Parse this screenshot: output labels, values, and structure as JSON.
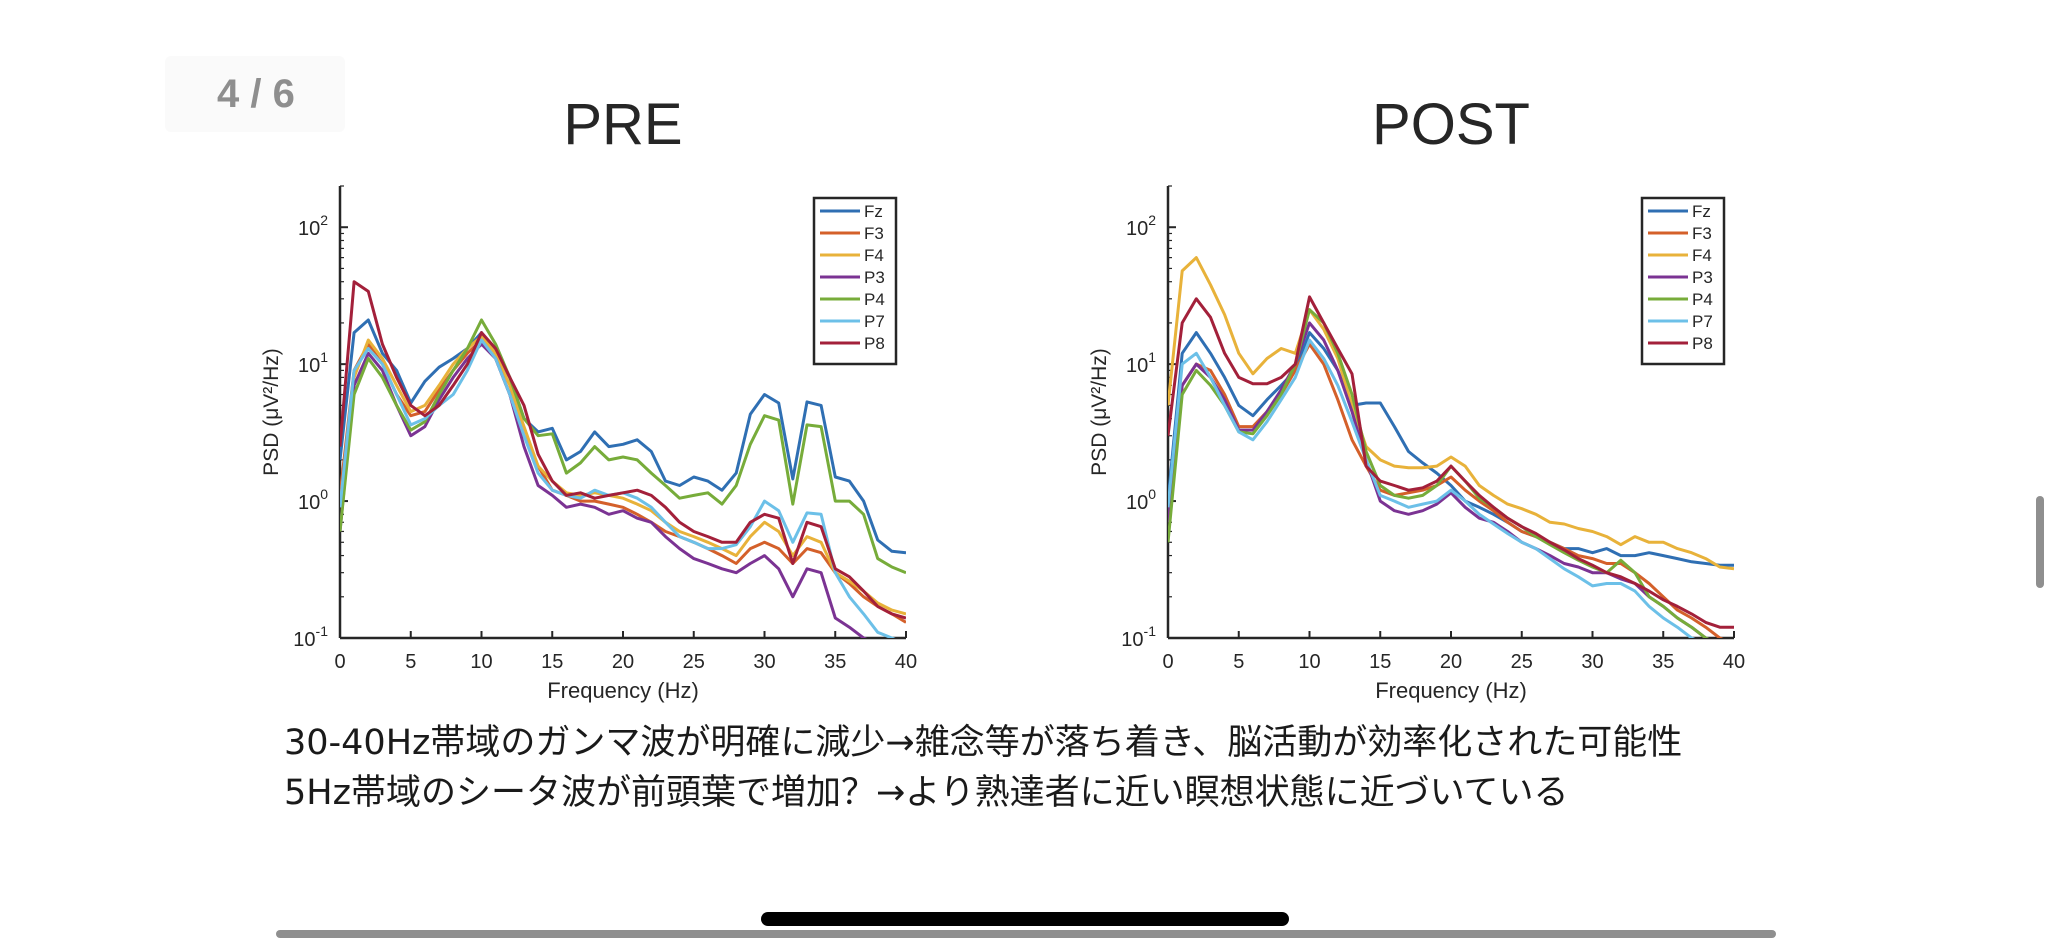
{
  "page_indicator": "4 / 6",
  "caption": {
    "line1": "30-40Hz帯域のガンマ波が明確に減少→雑念等が落ち着き、脳活動が効率化された可能性",
    "line2": "5Hz帯域のシータ波が前頭葉で増加？→より熟達者に近い瞑想状態に近づいている"
  },
  "colors": {
    "Fz": "#2f6fb3",
    "F3": "#d4602a",
    "F4": "#e8b23a",
    "P3": "#7b3393",
    "P4": "#77ac3a",
    "P7": "#6cc0e8",
    "P8": "#a3203a"
  },
  "chart_data": [
    {
      "type": "line",
      "title": "PRE",
      "xlabel": "Frequency (Hz)",
      "ylabel": "PSD (μV²/Hz)",
      "xlim": [
        0,
        40
      ],
      "ylim": [
        0.1,
        200
      ],
      "yscale": "log",
      "grid": false,
      "legend": "top-right",
      "x_ticks": [
        "0",
        "5",
        "10",
        "15",
        "20",
        "25",
        "30",
        "35",
        "40"
      ],
      "x": [
        0,
        1,
        2,
        3,
        4,
        5,
        6,
        7,
        8,
        9,
        10,
        11,
        12,
        13,
        14,
        15,
        16,
        17,
        18,
        19,
        20,
        21,
        22,
        23,
        24,
        25,
        26,
        27,
        28,
        29,
        30,
        31,
        32,
        33,
        34,
        35,
        36,
        37,
        38,
        39,
        40
      ],
      "series": [
        {
          "name": "Fz",
          "values": [
            2.0,
            17,
            21,
            12,
            9,
            5.2,
            7.5,
            9.5,
            11,
            13,
            17,
            12,
            8,
            4,
            3.2,
            3.4,
            2,
            2.3,
            3.2,
            2.5,
            2.6,
            2.8,
            2.3,
            1.4,
            1.3,
            1.5,
            1.4,
            1.2,
            1.6,
            4.3,
            6,
            5.2,
            1.45,
            5.3,
            5,
            1.5,
            1.4,
            1,
            0.52,
            0.43,
            0.42
          ]
        },
        {
          "name": "F3",
          "values": [
            1.1,
            9,
            14,
            10,
            6,
            4.2,
            4.5,
            6.5,
            9,
            12,
            15,
            11,
            6,
            3,
            1.8,
            1.2,
            1.1,
            1.0,
            1.0,
            0.95,
            0.9,
            0.8,
            0.7,
            0.6,
            0.55,
            0.5,
            0.45,
            0.4,
            0.35,
            0.45,
            0.5,
            0.45,
            0.35,
            0.45,
            0.42,
            0.3,
            0.25,
            0.2,
            0.17,
            0.15,
            0.13
          ]
        },
        {
          "name": "F4",
          "values": [
            0.9,
            8,
            15,
            11,
            7,
            4.5,
            5,
            7,
            10,
            13,
            16,
            12,
            7,
            3.5,
            1.8,
            1.4,
            1.15,
            1.1,
            1.15,
            1.1,
            1.05,
            0.95,
            0.85,
            0.7,
            0.6,
            0.55,
            0.5,
            0.45,
            0.4,
            0.55,
            0.7,
            0.6,
            0.4,
            0.55,
            0.5,
            0.3,
            0.26,
            0.22,
            0.18,
            0.16,
            0.15
          ]
        },
        {
          "name": "P3",
          "values": [
            0.6,
            7,
            12,
            9,
            5,
            3,
            3.5,
            5.5,
            8,
            11,
            14,
            11,
            6,
            2.5,
            1.3,
            1.1,
            0.9,
            0.95,
            0.9,
            0.8,
            0.85,
            0.75,
            0.7,
            0.55,
            0.45,
            0.38,
            0.35,
            0.32,
            0.3,
            0.35,
            0.4,
            0.32,
            0.2,
            0.32,
            0.3,
            0.14,
            0.12,
            0.1,
            0.09,
            0.08,
            0.08
          ]
        },
        {
          "name": "P4",
          "values": [
            0.6,
            6,
            11,
            8,
            5,
            3.3,
            3.8,
            6,
            9,
            13,
            21,
            14,
            8,
            4,
            3,
            3.1,
            1.6,
            1.9,
            2.5,
            2.0,
            2.1,
            2.0,
            1.6,
            1.3,
            1.05,
            1.1,
            1.15,
            0.95,
            1.3,
            2.6,
            4.2,
            3.9,
            0.95,
            3.6,
            3.5,
            1.0,
            1.0,
            0.8,
            0.38,
            0.33,
            0.3
          ]
        },
        {
          "name": "P7",
          "values": [
            0.9,
            9,
            13,
            10,
            6,
            3.6,
            4,
            5,
            6,
            9,
            15,
            11,
            6,
            3,
            1.6,
            1.2,
            1.1,
            1.05,
            1.2,
            1.1,
            1.15,
            1.05,
            0.9,
            0.7,
            0.55,
            0.5,
            0.45,
            0.45,
            0.48,
            0.65,
            1.0,
            0.85,
            0.5,
            0.82,
            0.8,
            0.3,
            0.2,
            0.15,
            0.11,
            0.1,
            0.09
          ]
        },
        {
          "name": "P8",
          "values": [
            2.5,
            40,
            34,
            14,
            8,
            5,
            4.2,
            5,
            7,
            10,
            17,
            13,
            8,
            5,
            2.2,
            1.4,
            1.1,
            1.15,
            1.05,
            1.1,
            1.15,
            1.2,
            1.1,
            0.9,
            0.7,
            0.6,
            0.55,
            0.5,
            0.5,
            0.7,
            0.8,
            0.75,
            0.35,
            0.7,
            0.65,
            0.32,
            0.28,
            0.22,
            0.17,
            0.15,
            0.14
          ]
        }
      ]
    },
    {
      "type": "line",
      "title": "POST",
      "xlabel": "Frequency (Hz)",
      "ylabel": "PSD (μV²/Hz)",
      "xlim": [
        0,
        40
      ],
      "ylim": [
        0.1,
        200
      ],
      "yscale": "log",
      "grid": false,
      "legend": "top-right",
      "x_ticks": [
        "0",
        "5",
        "10",
        "15",
        "20",
        "25",
        "30",
        "35",
        "40"
      ],
      "x": [
        0,
        1,
        2,
        3,
        4,
        5,
        6,
        7,
        8,
        9,
        10,
        11,
        12,
        13,
        14,
        15,
        16,
        17,
        18,
        19,
        20,
        21,
        22,
        23,
        24,
        25,
        26,
        27,
        28,
        29,
        30,
        31,
        32,
        33,
        34,
        35,
        36,
        37,
        38,
        39,
        40
      ],
      "series": [
        {
          "name": "Fz",
          "values": [
            1.0,
            12,
            17,
            12,
            8,
            5,
            4.2,
            5.5,
            7,
            9,
            17,
            13,
            9,
            5,
            5.2,
            5.2,
            3.5,
            2.3,
            1.9,
            1.6,
            1.3,
            1.0,
            0.9,
            0.8,
            0.7,
            0.6,
            0.55,
            0.5,
            0.45,
            0.45,
            0.42,
            0.45,
            0.4,
            0.4,
            0.42,
            0.4,
            0.38,
            0.36,
            0.35,
            0.34,
            0.34
          ]
        },
        {
          "name": "F3",
          "values": [
            0.8,
            7,
            10,
            9,
            6,
            3.5,
            3.5,
            4.5,
            6,
            9,
            14,
            10,
            5.5,
            2.8,
            1.8,
            1.2,
            1.1,
            1.15,
            1.2,
            1.3,
            1.5,
            1.2,
            1.0,
            0.85,
            0.7,
            0.6,
            0.55,
            0.5,
            0.45,
            0.4,
            0.38,
            0.35,
            0.35,
            0.3,
            0.25,
            0.2,
            0.16,
            0.14,
            0.12,
            0.1,
            0.09
          ]
        },
        {
          "name": "F4",
          "values": [
            5,
            48,
            60,
            38,
            23,
            12,
            8.5,
            11,
            13,
            12,
            25,
            18,
            11,
            5,
            2.5,
            2.0,
            1.8,
            1.75,
            1.75,
            1.8,
            2.1,
            1.8,
            1.3,
            1.1,
            0.95,
            0.88,
            0.8,
            0.7,
            0.68,
            0.63,
            0.6,
            0.55,
            0.48,
            0.55,
            0.5,
            0.5,
            0.45,
            0.42,
            0.38,
            0.33,
            0.32
          ]
        },
        {
          "name": "P3",
          "values": [
            0.7,
            7,
            10,
            8,
            5.5,
            3.3,
            3.3,
            4.5,
            6.5,
            10,
            20,
            15,
            9,
            4.5,
            2.0,
            1.0,
            0.85,
            0.8,
            0.85,
            0.95,
            1.15,
            0.9,
            0.75,
            0.7,
            0.6,
            0.5,
            0.45,
            0.4,
            0.35,
            0.33,
            0.3,
            0.3,
            0.27,
            0.25,
            0.2,
            0.17,
            0.14,
            0.12,
            0.1,
            0.09,
            0.08
          ]
        },
        {
          "name": "P4",
          "values": [
            0.5,
            6,
            9,
            7,
            5,
            3.2,
            3.1,
            4.2,
            6,
            10,
            25,
            20,
            12,
            6,
            2.3,
            1.3,
            1.1,
            1.05,
            1.1,
            1.3,
            1.8,
            1.4,
            1.05,
            0.9,
            0.75,
            0.65,
            0.55,
            0.48,
            0.42,
            0.37,
            0.33,
            0.3,
            0.37,
            0.3,
            0.2,
            0.17,
            0.14,
            0.12,
            0.1,
            0.09,
            0.08
          ]
        },
        {
          "name": "P7",
          "values": [
            0.9,
            10,
            12,
            8,
            5,
            3.2,
            2.8,
            3.8,
            5.5,
            8,
            15,
            11,
            7,
            3.8,
            2.0,
            1.1,
            1.0,
            0.9,
            0.95,
            1.0,
            1.2,
            1.0,
            0.8,
            0.68,
            0.58,
            0.5,
            0.45,
            0.38,
            0.32,
            0.28,
            0.24,
            0.25,
            0.25,
            0.22,
            0.17,
            0.14,
            0.12,
            0.1,
            0.09,
            0.08,
            0.08
          ]
        },
        {
          "name": "P8",
          "values": [
            3,
            20,
            30,
            22,
            12,
            8,
            7.2,
            7.2,
            8,
            10,
            31,
            20,
            13,
            8.5,
            1.8,
            1.4,
            1.3,
            1.2,
            1.25,
            1.4,
            1.8,
            1.4,
            1.1,
            0.9,
            0.75,
            0.65,
            0.58,
            0.5,
            0.44,
            0.38,
            0.34,
            0.3,
            0.28,
            0.25,
            0.22,
            0.19,
            0.17,
            0.15,
            0.13,
            0.12,
            0.12
          ]
        }
      ]
    }
  ]
}
